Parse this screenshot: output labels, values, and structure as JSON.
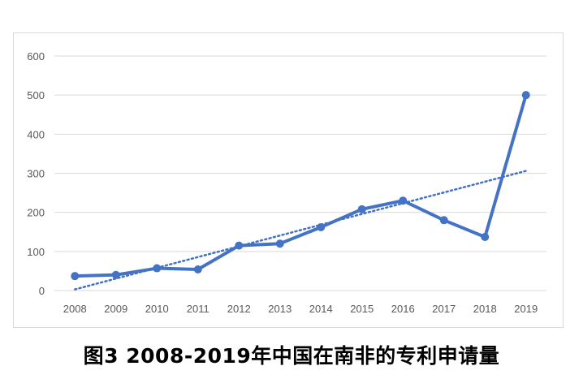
{
  "caption": "图3  2008-2019年中国在南非的专利申请量",
  "colors": {
    "series": "#4472c4",
    "trendline": "#4472c4",
    "grid": "#d9d9d9",
    "tick_text": "#595959"
  },
  "chart_data": {
    "type": "line",
    "title": "",
    "xlabel": "",
    "ylabel": "",
    "categories": [
      "2008",
      "2009",
      "2010",
      "2011",
      "2012",
      "2013",
      "2014",
      "2015",
      "2016",
      "2017",
      "2018",
      "2019"
    ],
    "series": [
      {
        "values": [
          37,
          40,
          57,
          54,
          115,
          120,
          162,
          208,
          230,
          180,
          137,
          500
        ],
        "marker": "circle"
      }
    ],
    "trendline": {
      "type": "linear",
      "style": "dotted",
      "start": 3,
      "end": 306
    },
    "yticks": [
      0,
      100,
      200,
      300,
      400,
      500,
      600
    ],
    "ylim": [
      0,
      600
    ],
    "grid": true,
    "legend": "none"
  }
}
